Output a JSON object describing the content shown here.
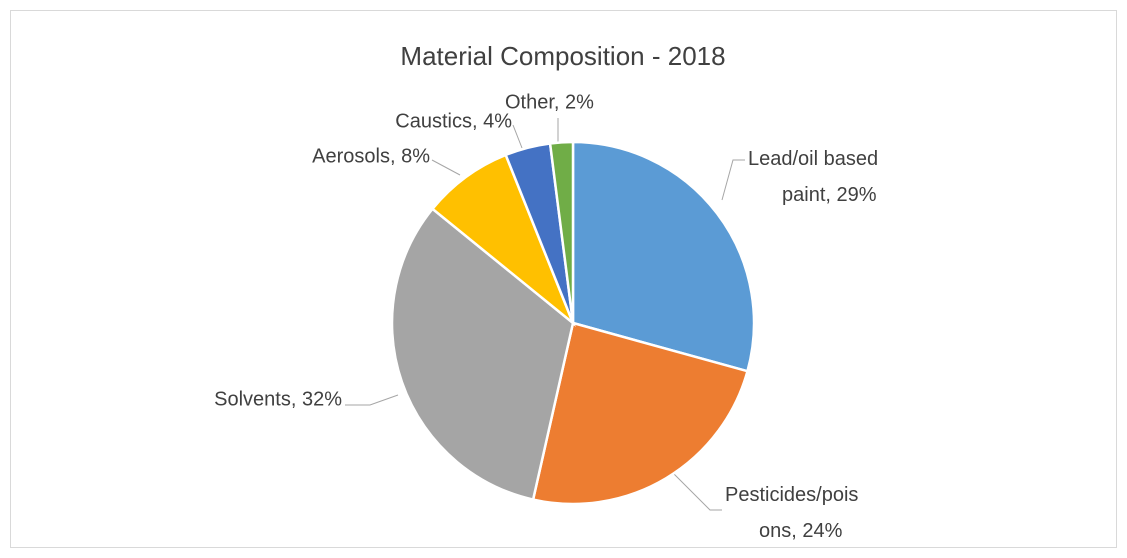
{
  "chart_data": {
    "type": "pie",
    "title": "Material Composition - 2018",
    "values": [
      29,
      24,
      32,
      8,
      4,
      2
    ],
    "value_labels": [
      "Lead/oil based paint, 29%",
      "Pesticides/poisons, 24%",
      "Solvents, 32%",
      "Aerosols, 8%",
      "Caustics, 4%",
      "Other, 2%"
    ],
    "colors": [
      "#5b9bd5",
      "#ed7d31",
      "#a5a5a5",
      "#ffc000",
      "#4472c4",
      "#70ad47"
    ]
  }
}
